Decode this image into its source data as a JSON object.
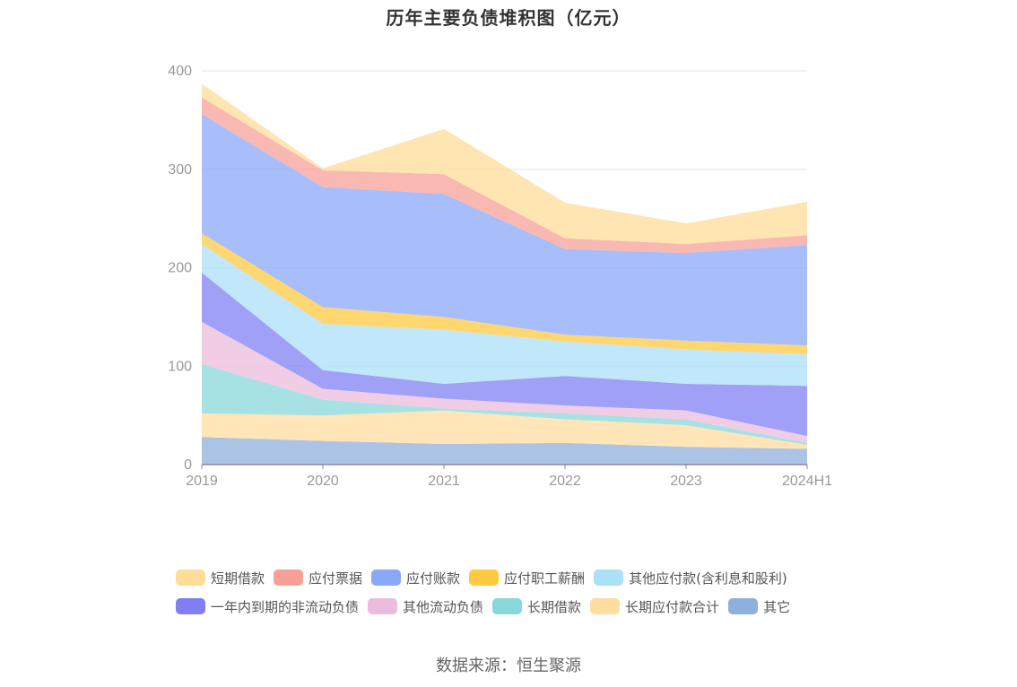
{
  "chart_data": {
    "type": "area",
    "stacked": true,
    "title": "历年主要负债堆积图（亿元）",
    "xlabel": "",
    "ylabel": "",
    "categories": [
      "2019",
      "2020",
      "2021",
      "2022",
      "2023",
      "2024H1"
    ],
    "ylim": [
      0,
      400
    ],
    "yticks": [
      0,
      100,
      200,
      300,
      400
    ],
    "grid": true,
    "legend_position": "bottom",
    "series": [
      {
        "name": "其它",
        "color": "#8fb0dc",
        "values": [
          28,
          24,
          21,
          22,
          18,
          16
        ]
      },
      {
        "name": "长期应付款合计",
        "color": "#ffdca0",
        "values": [
          24,
          26,
          34,
          24,
          22,
          4
        ]
      },
      {
        "name": "长期借款",
        "color": "#88d8da",
        "values": [
          50,
          16,
          2,
          6,
          6,
          2
        ]
      },
      {
        "name": "其他流动负债",
        "color": "#ecbcdc",
        "values": [
          43,
          11,
          10,
          8,
          9,
          7
        ]
      },
      {
        "name": "一年内到期的非流动负债",
        "color": "#8080f4",
        "values": [
          50,
          19,
          15,
          30,
          27,
          51
        ]
      },
      {
        "name": "其他应付款(含利息和股利)",
        "color": "#acdff8",
        "values": [
          29,
          47,
          55,
          35,
          35,
          32
        ]
      },
      {
        "name": "应付职工薪酬",
        "color": "#ffca40",
        "values": [
          11,
          17,
          13,
          7,
          9,
          9
        ]
      },
      {
        "name": "应付账款",
        "color": "#8aa8f8",
        "values": [
          121,
          122,
          125,
          87,
          89,
          102
        ]
      },
      {
        "name": "应付票据",
        "color": "#f8a098",
        "values": [
          17,
          17,
          20,
          11,
          9,
          10
        ]
      },
      {
        "name": "短期借款",
        "color": "#ffdc98",
        "values": [
          14,
          2,
          46,
          36,
          21,
          34
        ]
      }
    ],
    "source": "数据来源：恒生聚源"
  }
}
